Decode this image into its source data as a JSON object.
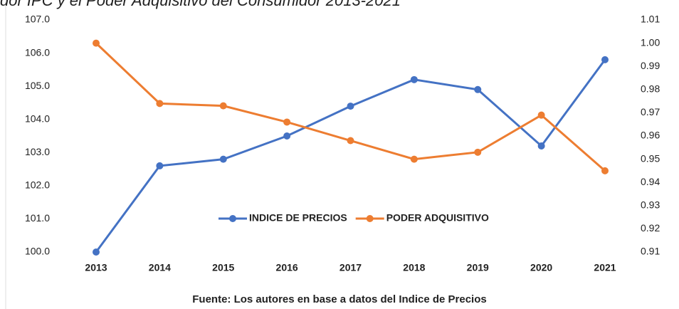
{
  "chart_data": {
    "type": "line",
    "title": "dor IPC y el Poder Adquisitivo del Consumidor 2013-2021",
    "categories": [
      "2013",
      "2014",
      "2015",
      "2016",
      "2017",
      "2018",
      "2019",
      "2020",
      "2021"
    ],
    "series": [
      {
        "name": "INDICE DE PRECIOS",
        "color": "#4472c4",
        "values": [
          100.0,
          102.6,
          102.8,
          103.5,
          104.4,
          105.2,
          104.9,
          103.2,
          105.8
        ]
      },
      {
        "name": "PODER ADQUISITIVO",
        "color": "#ed7d31",
        "axis": "y2",
        "values": [
          1.0,
          0.974,
          0.973,
          0.966,
          0.958,
          0.95,
          0.953,
          0.969,
          0.945
        ]
      }
    ],
    "ylim": [
      100,
      107
    ],
    "yticks": [
      {
        "value": 100,
        "label": "100.0"
      },
      {
        "value": 101,
        "label": "101.0"
      },
      {
        "value": 102,
        "label": "102.0"
      },
      {
        "value": 103,
        "label": "103.0"
      },
      {
        "value": 104,
        "label": "104.0"
      },
      {
        "value": 105,
        "label": "105.0"
      },
      {
        "value": 106,
        "label": "106.0"
      },
      {
        "value": 107,
        "label": "107.0"
      }
    ],
    "y2lim": [
      0.91,
      1.01
    ],
    "y2ticks": [
      0.91,
      0.92,
      0.93,
      0.94,
      0.95,
      0.96,
      0.97,
      0.98,
      0.99,
      {
        "value": 1.0,
        "label": "1.00"
      },
      1.01
    ],
    "legend": "inside",
    "source": "Fuente: Los autores en base a datos del Indice de Precios"
  }
}
